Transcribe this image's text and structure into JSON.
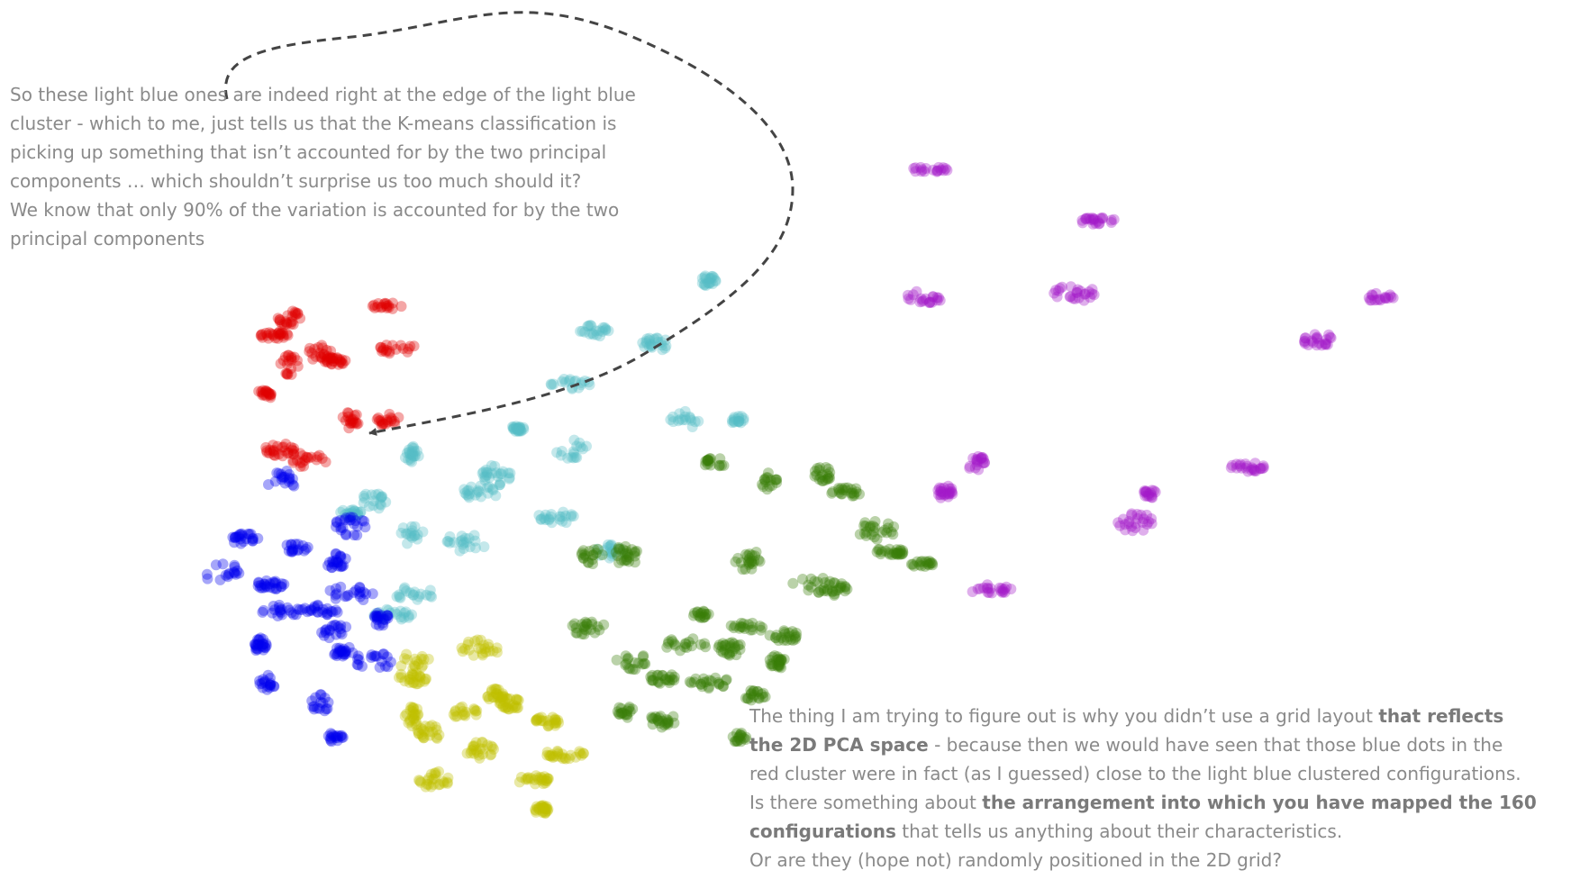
{
  "chart_data": {
    "type": "scatter",
    "title": "",
    "xlabel": "",
    "ylabel": "",
    "xlim": [
      0,
      100
    ],
    "ylim": [
      0,
      100
    ],
    "grid": false,
    "legend": "none",
    "colors": {
      "red": "#e00000",
      "light_blue": "#55bcc6",
      "blue": "#0000ee",
      "olive": "#bfbf00",
      "green": "#3a7d0a",
      "purple": "#a319c9"
    },
    "series": [
      {
        "color_key": "red",
        "clusters": [
          [
            15.5,
            64.5
          ],
          [
            22,
            66
          ],
          [
            14.5,
            62.5
          ],
          [
            17.5,
            60.5
          ],
          [
            22.5,
            61
          ],
          [
            15.5,
            59
          ],
          [
            18.5,
            59.5
          ],
          [
            13.8,
            55.5
          ],
          [
            19.5,
            52.5
          ],
          [
            22,
            52.5
          ],
          [
            14.8,
            49
          ],
          [
            16.8,
            48
          ]
        ]
      },
      {
        "color_key": "light_blue",
        "clusters": [
          [
            43,
            69
          ],
          [
            35.5,
            63
          ],
          [
            39.5,
            61.5
          ],
          [
            34,
            56.5
          ],
          [
            30.5,
            51.5
          ],
          [
            41.5,
            52.5
          ],
          [
            45,
            52.5
          ],
          [
            34,
            49
          ],
          [
            23.5,
            48.5
          ],
          [
            29,
            46
          ],
          [
            28,
            44
          ],
          [
            21,
            43
          ],
          [
            19.5,
            41.5
          ],
          [
            33,
            41
          ],
          [
            23.5,
            39
          ],
          [
            27,
            38
          ],
          [
            36.5,
            37
          ],
          [
            23.5,
            32
          ],
          [
            22,
            29.5
          ]
        ]
      },
      {
        "color_key": "blue",
        "clusters": [
          [
            15,
            45.5
          ],
          [
            19.5,
            40
          ],
          [
            12.5,
            38.5
          ],
          [
            16,
            37.5
          ],
          [
            18.5,
            36
          ],
          [
            11,
            34.5
          ],
          [
            14,
            33
          ],
          [
            19.5,
            32
          ],
          [
            15,
            30
          ],
          [
            17.5,
            30
          ],
          [
            21.5,
            29
          ],
          [
            18.5,
            27.5
          ],
          [
            13.5,
            26
          ],
          [
            19,
            25
          ],
          [
            21,
            24
          ],
          [
            14,
            21.5
          ],
          [
            17.5,
            19
          ],
          [
            18.5,
            15
          ]
        ]
      },
      {
        "color_key": "olive",
        "clusters": [
          [
            28,
            25.5
          ],
          [
            23.5,
            24
          ],
          [
            23.5,
            22
          ],
          [
            29,
            20
          ],
          [
            27,
            18
          ],
          [
            23.5,
            17.5
          ],
          [
            32.5,
            17
          ],
          [
            30,
            19
          ],
          [
            24.5,
            15.5
          ],
          [
            28,
            13.5
          ],
          [
            33.5,
            13
          ],
          [
            25,
            10
          ],
          [
            31.5,
            10
          ],
          [
            32,
            6.5
          ]
        ]
      },
      {
        "color_key": "green",
        "clusters": [
          [
            43.5,
            47.5
          ],
          [
            47,
            45.5
          ],
          [
            50.5,
            46
          ],
          [
            52,
            44
          ],
          [
            35.5,
            36.5
          ],
          [
            37.5,
            36.5
          ],
          [
            45.5,
            36
          ],
          [
            50,
            33
          ],
          [
            55,
            37
          ],
          [
            57,
            35.5
          ],
          [
            54,
            39.5
          ],
          [
            51.5,
            32.5
          ],
          [
            35,
            28
          ],
          [
            42.5,
            29.5
          ],
          [
            45.5,
            28
          ],
          [
            41.5,
            26
          ],
          [
            38,
            24
          ],
          [
            40,
            22
          ],
          [
            43,
            21.5
          ],
          [
            44.5,
            25.5
          ],
          [
            48,
            27
          ],
          [
            47.5,
            24
          ],
          [
            46,
            20
          ],
          [
            37.5,
            18
          ],
          [
            40,
            17
          ],
          [
            45,
            15
          ]
        ]
      },
      {
        "color_key": "purple",
        "clusters": [
          [
            57.5,
            82
          ],
          [
            68.5,
            76
          ],
          [
            57,
            67
          ],
          [
            67,
            67.5
          ],
          [
            87,
            67
          ],
          [
            83,
            62
          ],
          [
            60.5,
            47.5
          ],
          [
            58.5,
            44
          ],
          [
            72,
            44
          ],
          [
            71,
            40.5
          ],
          [
            78.5,
            47
          ],
          [
            61.5,
            32.5
          ]
        ]
      }
    ],
    "annotations": [
      {
        "id": "top",
        "lines": [
          [
            {
              "t": "So these light blue ones are indeed right at the edge of the light blue"
            }
          ],
          [
            {
              "t": "cluster - which to me, just tells us that the K-means classification is"
            }
          ],
          [
            {
              "t": "picking up something that isn’t accounted for by the two principal"
            }
          ],
          [
            {
              "t": "components … which shouldn’t surprise us too much should it?"
            }
          ],
          [
            {
              "t": "We know that only 90% of the variation is accounted for by the two"
            }
          ],
          [
            {
              "t": "principal components"
            }
          ]
        ]
      },
      {
        "id": "bottom",
        "lines": [
          [
            {
              "t": "The thing I am trying to figure out is why you didn’t use a grid layout "
            },
            {
              "t": "that reflects",
              "b": true
            }
          ],
          [
            {
              "t": "the 2D PCA space",
              "b": true
            },
            {
              "t": " - because then we would have seen that those blue dots in the"
            }
          ],
          [
            {
              "t": "red cluster were in fact (as I guessed) close to the light blue clustered configurations."
            }
          ],
          [
            {
              "t": "Is there something about "
            },
            {
              "t": "the arrangement into which you have mapped the 160",
              "b": true
            }
          ],
          [
            {
              "t": "configurations",
              "b": true
            },
            {
              "t": " that tells us anything about their characteristics."
            }
          ],
          [
            {
              "t": "Or are they (hope not) randomly positioned in the 2D grid?"
            }
          ]
        ]
      }
    ]
  }
}
